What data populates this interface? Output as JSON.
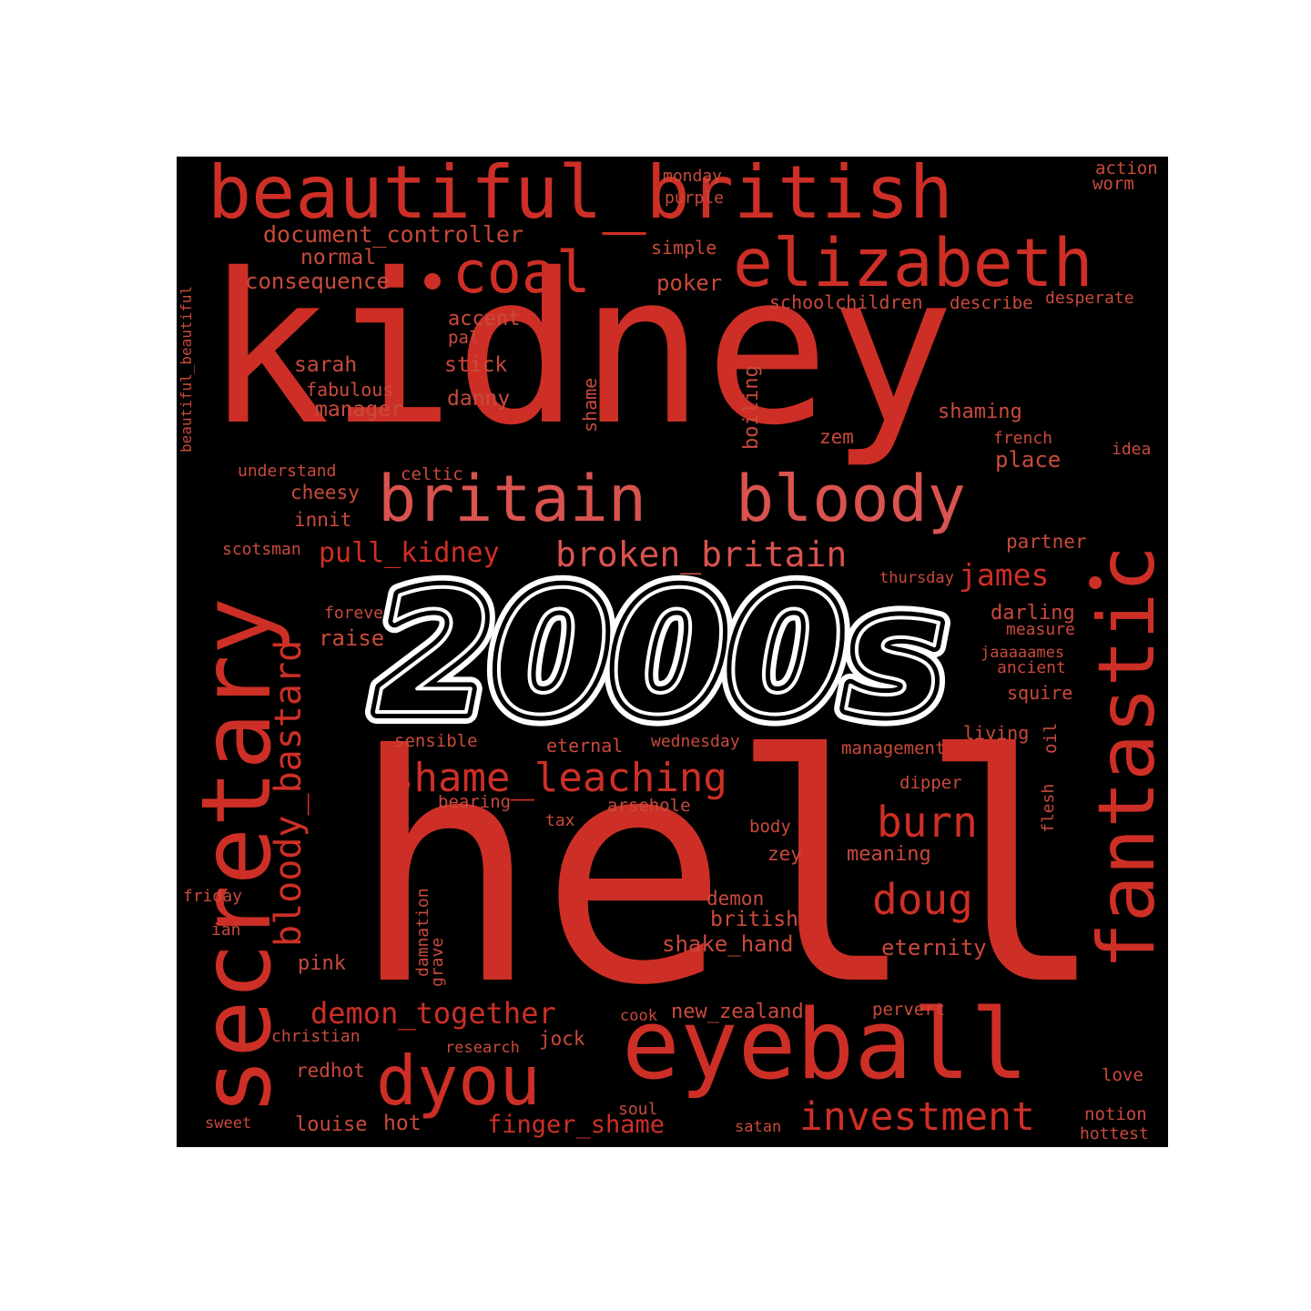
{
  "colors": {
    "background": "#000000",
    "page": "#ffffff",
    "word_primary": "#cd2f26",
    "word_light": "#d9534f",
    "word_muted": "#c94a3c",
    "badge_fill": "#000000",
    "badge_outline": "#ffffff"
  },
  "badge": {
    "text": "2000s"
  },
  "words": [
    "kidney",
    "hell",
    "beautiful_british",
    "elizabeth",
    "coal",
    "secretary",
    "britain",
    "bloody",
    "fantastic",
    "eyeball",
    "dyou",
    "investment",
    "bloody_bastard",
    "pull_kidney",
    "broken_britain",
    "james",
    "shame_leaching",
    "burn",
    "doug",
    "demon_together",
    "finger_shame",
    "document_controller",
    "normal",
    "consequence",
    "monday",
    "purple",
    "simple",
    "poker",
    "action",
    "worm",
    "schoolchildren",
    "describe",
    "desperate",
    "accent",
    "pal",
    "stick",
    "sarah",
    "fabulous",
    "manager",
    "danny",
    "shame",
    "boiling",
    "shaming",
    "zem",
    "french",
    "idea",
    "place",
    "understand",
    "celtic",
    "cheesy",
    "innit",
    "scotsman",
    "partner",
    "thursday",
    "forever",
    "raise",
    "darling",
    "measure",
    "jaaaaames",
    "ancient",
    "squire",
    "living",
    "oil",
    "sensible",
    "eternal",
    "wednesday",
    "management",
    "bearing",
    "arsehole",
    "dipper",
    "tax",
    "flesh",
    "body",
    "zey",
    "meaning",
    "damnation",
    "grave",
    "demon",
    "british",
    "shake_hand",
    "eternity",
    "friday",
    "ian",
    "pink",
    "cook",
    "new_zealand",
    "pervert",
    "christian",
    "research",
    "jock",
    "redhot",
    "love",
    "sweet",
    "louise",
    "hot",
    "soul",
    "satan",
    "notion",
    "hottest",
    "beautiful_beautiful"
  ]
}
